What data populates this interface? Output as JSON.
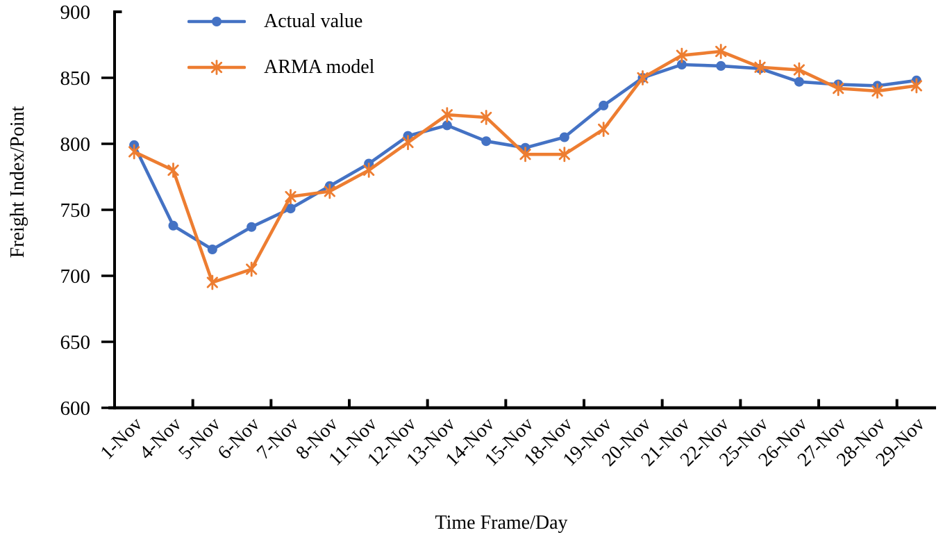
{
  "chart_data": {
    "type": "line",
    "title": "",
    "xlabel": "Time Frame/Day",
    "ylabel": "Freight Index/Point",
    "categories": [
      "1-Nov",
      "4-Nov",
      "5-Nov",
      "6-Nov",
      "7-Nov",
      "8-Nov",
      "11-Nov",
      "12-Nov",
      "13-Nov",
      "14-Nov",
      "15-Nov",
      "18-Nov",
      "19-Nov",
      "20-Nov",
      "21-Nov",
      "22-Nov",
      "25-Nov",
      "26-Nov",
      "27-Nov",
      "28-Nov",
      "29-Nov"
    ],
    "series": [
      {
        "name": "Actual value",
        "color": "#4472C4",
        "marker": "circle",
        "values": [
          799,
          738,
          720,
          737,
          751,
          768,
          785,
          806,
          814,
          802,
          797,
          805,
          829,
          850,
          860,
          859,
          857,
          847,
          845,
          844,
          848
        ]
      },
      {
        "name": "ARMA model",
        "color": "#ED7D31",
        "marker": "asterisk",
        "values": [
          794,
          780,
          695,
          705,
          760,
          764,
          780,
          801,
          822,
          820,
          792,
          792,
          811,
          850,
          867,
          870,
          858,
          856,
          842,
          840,
          844
        ]
      }
    ],
    "y_axis": {
      "min": 600,
      "max": 900,
      "tick_step": 50,
      "ticks": [
        600,
        650,
        700,
        750,
        800,
        850,
        900
      ]
    },
    "x_axis": {
      "tick_interval": 2,
      "label_rotation_deg": -45
    },
    "legend_position": "top-left-inside",
    "grid": false,
    "axis_color": "#000000",
    "text_color": "#000000",
    "background_color": "#ffffff"
  }
}
